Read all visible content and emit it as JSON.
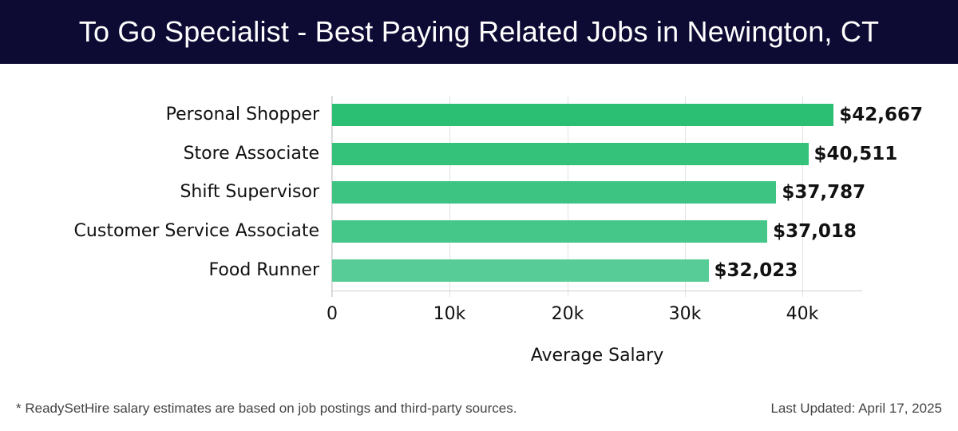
{
  "header": {
    "title": "To Go Specialist - Best Paying Related Jobs in Newington, CT"
  },
  "chart_data": {
    "type": "bar",
    "orientation": "horizontal",
    "title": "To Go Specialist - Best Paying Related Jobs in Newington, CT",
    "xlabel": "Average Salary",
    "ylabel": "",
    "categories": [
      "Personal Shopper",
      "Store Associate",
      "Shift Supervisor",
      "Customer Service Associate",
      "Food Runner"
    ],
    "values": [
      42667,
      40511,
      37787,
      37018,
      32023
    ],
    "value_labels": [
      "$42,667",
      "$40,511",
      "$37,787",
      "$37,018",
      "$32,023"
    ],
    "bar_colors": [
      "#2bbf74",
      "#34c27b",
      "#3dc482",
      "#45c789",
      "#58cc96"
    ],
    "xticks": [
      0,
      10000,
      20000,
      30000,
      40000
    ],
    "xtick_labels": [
      "0",
      "10k",
      "20k",
      "30k",
      "40k"
    ],
    "xlim": [
      0,
      45000
    ],
    "grid": "vertical",
    "legend": "none"
  },
  "footer": {
    "note": "* ReadySetHire salary estimates are based on job postings and third-party sources.",
    "last_updated": "Last Updated: April 17, 2025"
  },
  "colors": {
    "header_bg": "#0d0b34",
    "header_text": "#ffffff"
  }
}
